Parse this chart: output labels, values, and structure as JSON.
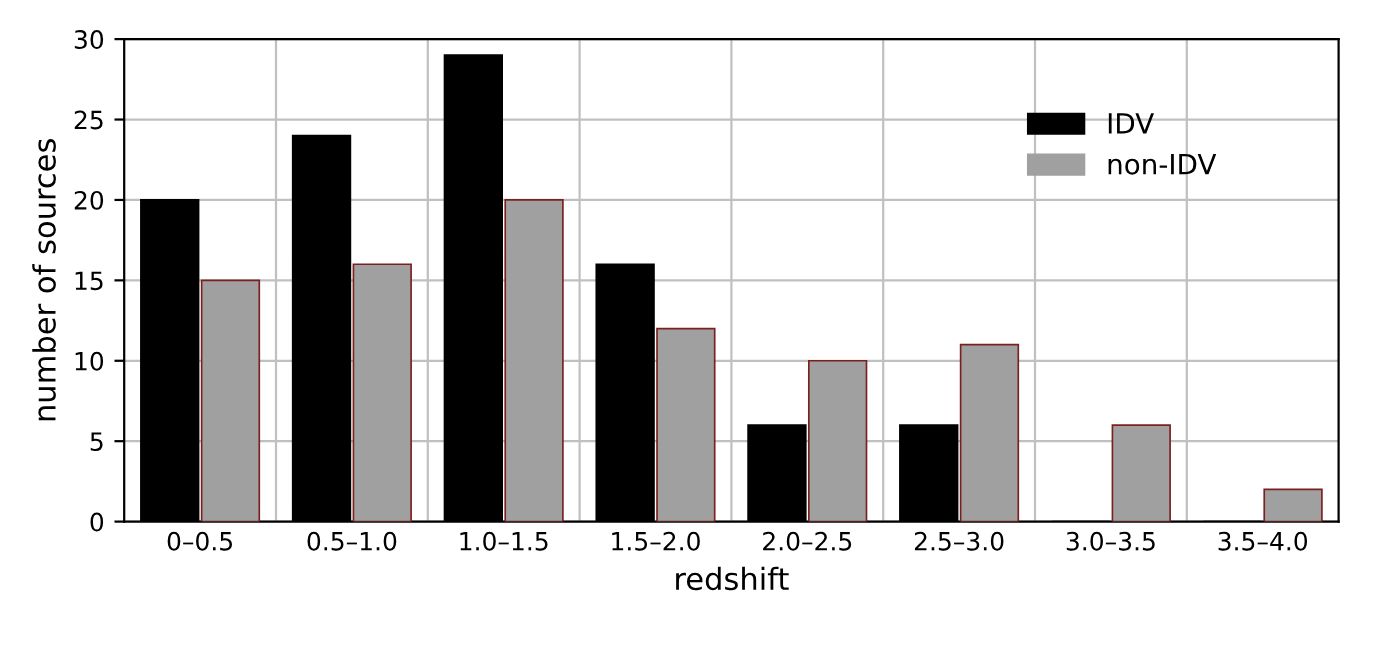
{
  "chart_data": {
    "type": "bar",
    "xlabel": "redshift",
    "ylabel": "number of sources",
    "categories": [
      "0–0.5",
      "0.5–1.0",
      "1.0–1.5",
      "1.5–2.0",
      "2.0–2.5",
      "2.5–3.0",
      "3.0–3.5",
      "3.5–4.0"
    ],
    "series": [
      {
        "name": "IDV",
        "color": "#000000",
        "values": [
          20,
          24,
          29,
          16,
          6,
          6,
          0,
          0
        ]
      },
      {
        "name": "non-IDV",
        "color": "#a0a0a0",
        "values": [
          15,
          16,
          20,
          12,
          10,
          11,
          6,
          2
        ]
      }
    ],
    "ylim": [
      0,
      30
    ],
    "yticks": [
      0,
      5,
      10,
      15,
      20,
      25,
      30
    ],
    "grid": true,
    "legend": "top right"
  }
}
